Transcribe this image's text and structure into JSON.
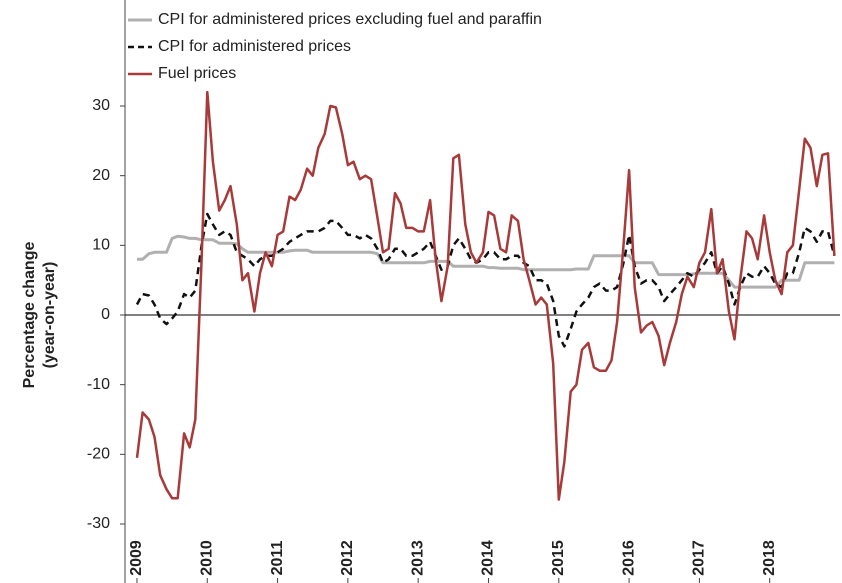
{
  "chart_data": {
    "type": "line",
    "y_label": [
      "Percentage change",
      "(year-on-year)"
    ],
    "x": [
      2009,
      2009.08,
      2009.17,
      2009.25,
      2009.33,
      2009.42,
      2009.5,
      2009.58,
      2009.67,
      2009.75,
      2009.83,
      2009.92,
      2010,
      2010.08,
      2010.17,
      2010.25,
      2010.33,
      2010.42,
      2010.5,
      2010.58,
      2010.67,
      2010.75,
      2010.83,
      2010.92,
      2011,
      2011.08,
      2011.17,
      2011.25,
      2011.33,
      2011.42,
      2011.5,
      2011.58,
      2011.67,
      2011.75,
      2011.83,
      2011.92,
      2012,
      2012.08,
      2012.17,
      2012.25,
      2012.33,
      2012.42,
      2012.5,
      2012.58,
      2012.67,
      2012.75,
      2012.83,
      2012.92,
      2013,
      2013.08,
      2013.17,
      2013.25,
      2013.33,
      2013.42,
      2013.5,
      2013.58,
      2013.67,
      2013.75,
      2013.83,
      2013.92,
      2014,
      2014.08,
      2014.17,
      2014.25,
      2014.33,
      2014.42,
      2014.5,
      2014.58,
      2014.67,
      2014.75,
      2014.83,
      2014.92,
      2015,
      2015.08,
      2015.17,
      2015.25,
      2015.33,
      2015.42,
      2015.5,
      2015.58,
      2015.67,
      2015.75,
      2015.83,
      2015.92,
      2016,
      2016.08,
      2016.17,
      2016.25,
      2016.33,
      2016.42,
      2016.5,
      2016.58,
      2016.67,
      2016.75,
      2016.83,
      2016.92,
      2017,
      2017.08,
      2017.17,
      2017.25,
      2017.33,
      2017.42,
      2017.5,
      2017.58,
      2017.67,
      2017.75,
      2017.83,
      2017.92,
      2018,
      2018.08,
      2018.17,
      2018.25,
      2018.33,
      2018.42,
      2018.5,
      2018.58,
      2018.67,
      2018.75,
      2018.83,
      2018.92
    ],
    "series": [
      {
        "name": "CPI for administered prices excluding fuel and paraffin",
        "color": "#b0b0b0",
        "dash": "none",
        "width": 3,
        "values": [
          8,
          8,
          8.8,
          9,
          9,
          9,
          11,
          11.3,
          11.2,
          11,
          11,
          10.8,
          10.8,
          10.8,
          10.3,
          10.3,
          10.3,
          10.2,
          9.5,
          9,
          9,
          9,
          9,
          9,
          9,
          9,
          9.2,
          9.3,
          9.3,
          9.3,
          9,
          9,
          9,
          9,
          9,
          9,
          9,
          9,
          9,
          9,
          9,
          8.8,
          7.5,
          7.5,
          7.5,
          7.5,
          7.5,
          7.5,
          7.5,
          7.5,
          7.7,
          7.7,
          7.7,
          7.7,
          7,
          7,
          7,
          7,
          7,
          7,
          6.8,
          6.8,
          6.7,
          6.7,
          6.7,
          6.7,
          6.5,
          6.5,
          6.5,
          6.5,
          6.5,
          6.5,
          6.5,
          6.5,
          6.5,
          6.6,
          6.6,
          6.6,
          8.5,
          8.5,
          8.5,
          8.5,
          8.5,
          8.5,
          8.5,
          7.5,
          7.5,
          7.5,
          7.5,
          5.8,
          5.8,
          5.8,
          5.8,
          5.8,
          5.8,
          5.9,
          6,
          6,
          6,
          6,
          6,
          5,
          4,
          4,
          4,
          4,
          4,
          4,
          4,
          4,
          5,
          5,
          5,
          5,
          7.5,
          7.5,
          7.5,
          7.5,
          7.5,
          7.5
        ]
      },
      {
        "name": "CPI for administered prices",
        "color": "#111111",
        "dash": "7,5",
        "width": 2.5,
        "values": [
          1.5,
          3,
          2.8,
          1.5,
          -0.5,
          -1.3,
          -0.5,
          0.5,
          3,
          2.5,
          3.5,
          10,
          14.5,
          13,
          11.5,
          12,
          11.5,
          9,
          8.5,
          8,
          7,
          8,
          8.5,
          8.5,
          9,
          9.5,
          10.5,
          11,
          11.5,
          12,
          12,
          12,
          12.5,
          13.5,
          13.5,
          12.5,
          11.5,
          11.5,
          11,
          11.5,
          11,
          9.5,
          7.5,
          8,
          9.5,
          9.5,
          8.5,
          8.5,
          9,
          9.5,
          10.5,
          8.5,
          6.5,
          7,
          10,
          11,
          9.5,
          8,
          7.5,
          8,
          9,
          9,
          8,
          8,
          8.5,
          8.5,
          7.5,
          7,
          5,
          5,
          4.5,
          2,
          -3,
          -4.5,
          -2,
          0.5,
          1.5,
          2.5,
          4,
          4.5,
          3.5,
          3.5,
          4,
          7.5,
          11.5,
          7,
          4.5,
          5,
          5,
          4,
          2,
          3,
          4,
          5,
          6,
          5.5,
          6.5,
          7.5,
          9,
          6,
          7,
          4.5,
          1.5,
          4,
          6,
          5.5,
          5.5,
          7,
          6,
          4.5,
          4,
          6,
          6,
          9,
          12.5,
          12,
          10.5,
          12,
          12,
          8.5
        ]
      },
      {
        "name": "Fuel prices",
        "color": "#a83a3a",
        "dash": "none",
        "width": 2.5,
        "values": [
          -20.5,
          -14,
          -15,
          -17.5,
          -23,
          -25,
          -26.3,
          -26.3,
          -17,
          -19,
          -15,
          8,
          32,
          22,
          15,
          16.5,
          18.5,
          13,
          5,
          6,
          0.5,
          6,
          9,
          7,
          11.5,
          12,
          17,
          16.5,
          18,
          21,
          20,
          24,
          26,
          30,
          29.8,
          26,
          21.5,
          22,
          19.5,
          20,
          19.5,
          14,
          9,
          9.5,
          17.5,
          16,
          12.5,
          12.5,
          12,
          12,
          16.5,
          8,
          2,
          7,
          22.5,
          23,
          13,
          9,
          7.5,
          9,
          14.8,
          14.3,
          9.5,
          9,
          14.3,
          13.5,
          8,
          5,
          1.5,
          2.5,
          1.5,
          -7,
          -26.5,
          -21,
          -11,
          -10,
          -5,
          -4,
          -7.5,
          -8,
          -8,
          -6.5,
          -1,
          10,
          20.8,
          4,
          -2.5,
          -1.5,
          -1,
          -3,
          -7.2,
          -4,
          -1,
          3,
          5.5,
          4,
          7.5,
          9,
          15.2,
          6,
          8,
          0.5,
          -3.5,
          5,
          12,
          11,
          8,
          14.3,
          9,
          5,
          3,
          9,
          10,
          18,
          25.3,
          24,
          18.5,
          23,
          23.2,
          8.5
        ]
      }
    ],
    "xlim": [
      2008.83,
      2019
    ],
    "xticks": [
      2009,
      2010,
      2011,
      2012,
      2013,
      2014,
      2015,
      2016,
      2017,
      2018
    ],
    "ylim": [
      -30,
      30
    ],
    "yticks": [
      -30,
      -20,
      -10,
      0,
      10,
      20,
      30
    ],
    "legend": "top-left"
  }
}
